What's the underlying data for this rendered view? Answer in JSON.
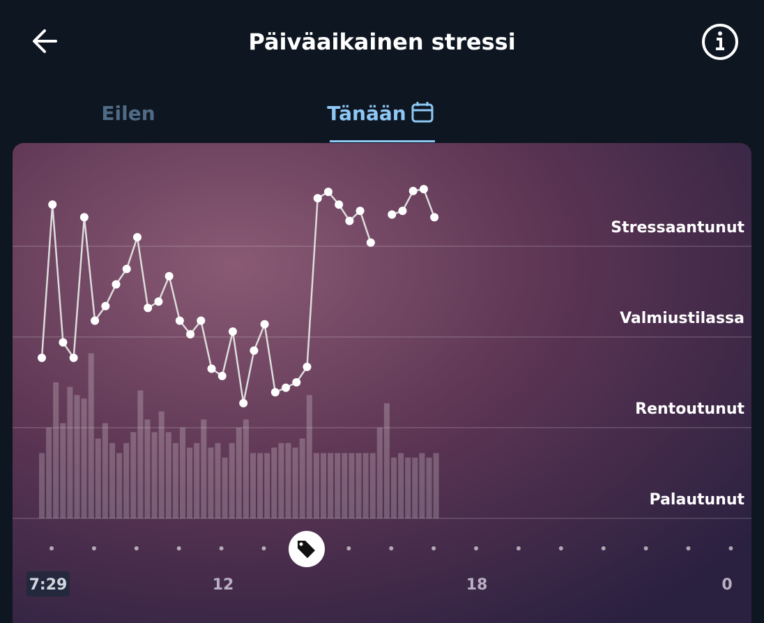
{
  "header": {
    "title": "Päiväaikainen stressi"
  },
  "tabs": [
    "Eilen",
    "Tänään"
  ],
  "stress_chart": {
    "type": "line",
    "ylim": [
      0,
      4
    ],
    "yticks": [
      {
        "value": 0,
        "label": "Palautunut"
      },
      {
        "value": 1,
        "label": "Rentoutunut"
      },
      {
        "value": 2,
        "label": "Valmiustilassa"
      },
      {
        "value": 3,
        "label": "Stressaantunut"
      }
    ],
    "xlim": [
      7,
      24
    ],
    "xticks": [
      {
        "value": 7.48,
        "label": "7:29"
      },
      12,
      18,
      {
        "value": 24,
        "label": "0"
      }
    ],
    "values": [
      1.77,
      3.46,
      1.94,
      1.77,
      3.32,
      2.18,
      2.34,
      2.58,
      2.75,
      3.1,
      2.32,
      2.39,
      2.67,
      2.18,
      2.03,
      2.18,
      1.65,
      1.57,
      2.06,
      1.27,
      1.85,
      2.14,
      1.39,
      1.44,
      1.5,
      1.67,
      3.53,
      3.6,
      3.46,
      3.28,
      3.39,
      3.04,
      null,
      3.35,
      3.39,
      3.61,
      3.63,
      3.32
    ],
    "bars": [
      0.72,
      1.0,
      1.5,
      1.05,
      1.45,
      1.36,
      1.32,
      1.82,
      0.88,
      1.05,
      0.83,
      0.72,
      0.83,
      0.95,
      1.41,
      1.09,
      0.95,
      1.18,
      0.95,
      0.83,
      1.0,
      0.78,
      0.83,
      1.09,
      0.78,
      0.83,
      0.67,
      0.83,
      1.0,
      1.09,
      0.72,
      0.72,
      0.72,
      0.78,
      0.83,
      0.83,
      0.78,
      0.88,
      1.36,
      0.72,
      0.72,
      0.72,
      0.72,
      0.72,
      0.72,
      0.72,
      0.72,
      0.72,
      1.0,
      1.27,
      0.67,
      0.72,
      0.67,
      0.67,
      0.72,
      0.67,
      0.72
    ]
  }
}
